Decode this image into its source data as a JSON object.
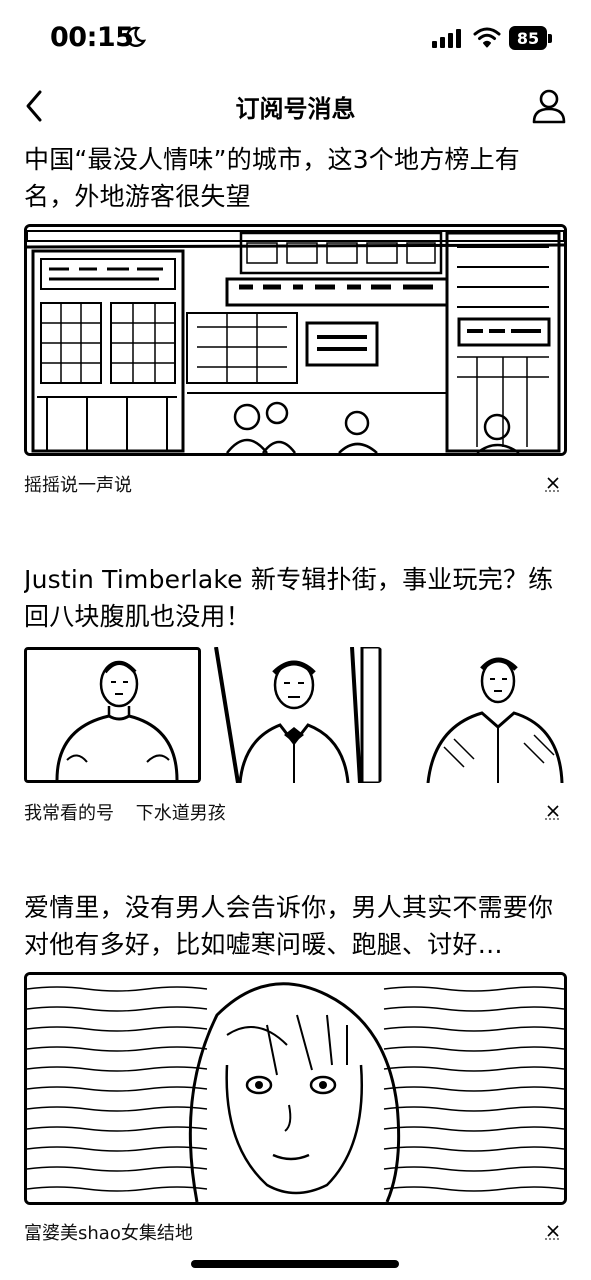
{
  "status_bar": {
    "time": "00:15",
    "battery": "85"
  },
  "nav": {
    "title": "订阅号消息"
  },
  "articles": [
    {
      "title": "中国“最没人情味”的城市，这3个地方榜上有名，外地游客很失望",
      "source": "摇摇说一声说",
      "source2": ""
    },
    {
      "title": "Justin Timberlake 新专辑扑街，事业玩完？练回八块腹肌也没用！",
      "source": "我常看的号",
      "source2": "下水道男孩"
    },
    {
      "title": "爱情里，没有男人会告诉你，男人其实不需要你对他有多好，比如嘘寒问暖、跑腿、讨好…",
      "source": "富婆美shao女集结地",
      "source2": ""
    }
  ],
  "icons": {
    "moon": "moon-icon",
    "signal": "signal-icon",
    "wifi": "wifi-icon",
    "back": "back-icon",
    "profile": "profile-icon",
    "close": "close-icon"
  }
}
